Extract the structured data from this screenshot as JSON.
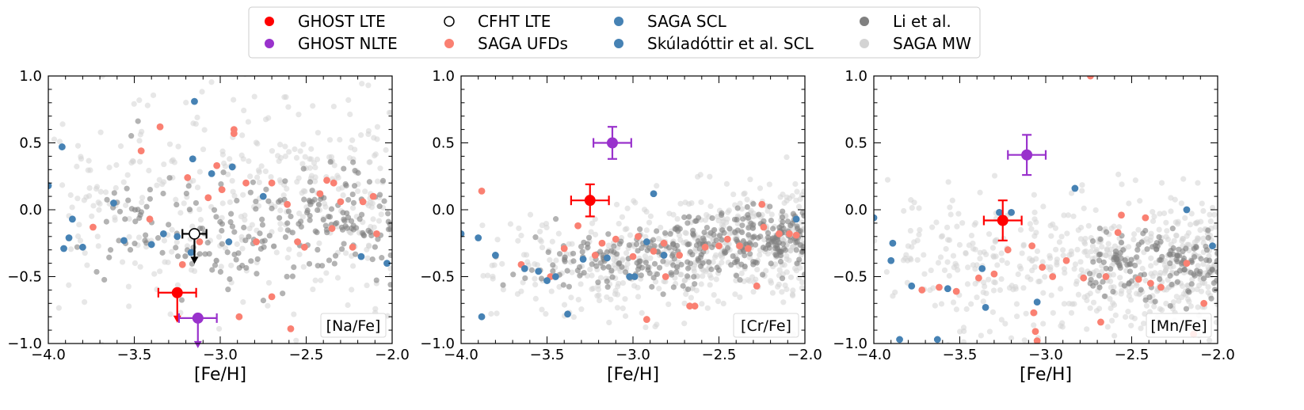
{
  "legend": {
    "entries": [
      {
        "label": "GHOST LTE",
        "marker": "filled",
        "color": "#ff0000"
      },
      {
        "label": "GHOST NLTE",
        "marker": "filled",
        "color": "#9932cc"
      },
      {
        "label": "CFHT LTE",
        "marker": "open",
        "color": "#000000"
      },
      {
        "label": "SAGA UFDs",
        "marker": "filled",
        "color": "#fa8072"
      },
      {
        "label": "SAGA SCL",
        "marker": "filled",
        "color": "#4682b4"
      },
      {
        "label": "Skúladóttir et al. SCL",
        "marker": "filled",
        "color": "#4682b4"
      },
      {
        "label": "Li et al.",
        "marker": "filled",
        "color": "#808080"
      },
      {
        "label": "SAGA MW",
        "marker": "filled",
        "color": "#d3d3d3"
      }
    ]
  },
  "colors": {
    "ghost_lte": "#ff0000",
    "ghost_nlte": "#9932cc",
    "cfht": "#000000",
    "saga_ufd": "#fa8072",
    "saga_scl": "#4682b4",
    "li": "#808080",
    "saga_mw": "#d3d3d3"
  },
  "chart_data": [
    {
      "type": "scatter",
      "title": "[Na/Fe]",
      "xlabel": "[Fe/H]",
      "ylabel": "",
      "xlim": [
        -4.0,
        -2.0
      ],
      "ylim": [
        -1.0,
        1.0
      ],
      "xticks": [
        -4.0,
        -3.5,
        -3.0,
        -2.5,
        -2.0
      ],
      "xtick_labels": [
        "−4.0",
        "−3.5",
        "−3.0",
        "−2.5",
        "−2.0"
      ],
      "yticks": [
        -1.0,
        -0.5,
        0.0,
        0.5,
        1.0
      ],
      "ytick_labels": [
        "−1.0",
        "−0.5",
        "0.0",
        "0.5",
        "1.0"
      ],
      "ghost_lte": {
        "x": -3.25,
        "y": -0.62,
        "xerr": 0.11,
        "upper_limit": true
      },
      "ghost_nlte": {
        "x": -3.13,
        "y": -0.81,
        "xerr": 0.11,
        "upper_limit": true
      },
      "cfht_lte": {
        "x": -3.15,
        "y": -0.18,
        "xerr": 0.07,
        "upper_limit": true
      },
      "saga_scl": [
        [
          -4.0,
          0.18
        ],
        [
          -3.92,
          0.47
        ],
        [
          -3.91,
          -0.29
        ],
        [
          -3.88,
          -0.21
        ],
        [
          -3.86,
          -0.07
        ],
        [
          -3.8,
          -0.28
        ],
        [
          -3.62,
          0.05
        ],
        [
          -3.56,
          -0.23
        ],
        [
          -3.4,
          -0.26
        ],
        [
          -3.33,
          -0.18
        ],
        [
          -3.25,
          -0.2
        ],
        [
          -3.15,
          0.81
        ],
        [
          -3.17,
          -0.32
        ],
        [
          -3.16,
          0.38
        ],
        [
          -3.05,
          0.27
        ],
        [
          -2.93,
          0.32
        ],
        [
          -2.95,
          -0.24
        ],
        [
          -2.75,
          0.1
        ],
        [
          -2.18,
          -0.35
        ],
        [
          -2.03,
          -0.4
        ]
      ],
      "saga_ufd": [
        [
          -3.74,
          -0.13
        ],
        [
          -3.46,
          0.44
        ],
        [
          -3.41,
          -0.07
        ],
        [
          -3.35,
          0.62
        ],
        [
          -3.19,
          0.24
        ],
        [
          -3.12,
          -0.24
        ],
        [
          -3.07,
          0.09
        ],
        [
          -3.02,
          0.33
        ],
        [
          -2.99,
          0.15
        ],
        [
          -2.92,
          0.6
        ],
        [
          -2.92,
          0.57
        ],
        [
          -2.85,
          0.2
        ],
        [
          -2.79,
          -0.24
        ],
        [
          -2.7,
          0.2
        ],
        [
          -2.61,
          0.04
        ],
        [
          -2.55,
          -0.24
        ],
        [
          -2.51,
          -0.28
        ],
        [
          -2.42,
          0.12
        ],
        [
          -2.38,
          0.22
        ],
        [
          -2.35,
          -0.14
        ],
        [
          -2.3,
          0.06
        ],
        [
          -2.23,
          -0.28
        ],
        [
          -2.17,
          0.06
        ],
        [
          -2.11,
          0.1
        ],
        [
          -2.09,
          -0.18
        ],
        [
          -2.7,
          -0.65
        ],
        [
          -2.59,
          -0.89
        ],
        [
          -2.89,
          -0.8
        ],
        [
          -3.22,
          -0.41
        ],
        [
          -2.34,
          0.2
        ]
      ],
      "series_seeds": {
        "li": 11,
        "mw": 23
      }
    },
    {
      "type": "scatter",
      "title": "[Cr/Fe]",
      "xlabel": "[Fe/H]",
      "ylabel": "",
      "xlim": [
        -4.0,
        -2.0
      ],
      "ylim": [
        -1.0,
        1.0
      ],
      "xticks": [
        -4.0,
        -3.5,
        -3.0,
        -2.5,
        -2.0
      ],
      "xtick_labels": [
        "−4.0",
        "−3.5",
        "−3.0",
        "−2.5",
        "−2.0"
      ],
      "yticks": [
        -1.0,
        -0.5,
        0.0,
        0.5,
        1.0
      ],
      "ytick_labels": [
        "−1.0",
        "−0.5",
        "0.0",
        "0.5",
        "1.0"
      ],
      "ghost_lte": {
        "x": -3.25,
        "y": 0.07,
        "xerr": 0.11,
        "yerr": 0.12
      },
      "ghost_nlte": {
        "x": -3.12,
        "y": 0.5,
        "xerr": 0.11,
        "yerr": 0.12
      },
      "saga_scl": [
        [
          -4.0,
          -0.18
        ],
        [
          -3.9,
          -0.21
        ],
        [
          -3.88,
          -0.8
        ],
        [
          -3.8,
          -0.34
        ],
        [
          -3.63,
          -0.44
        ],
        [
          -3.55,
          -0.46
        ],
        [
          -3.5,
          -0.53
        ],
        [
          -3.45,
          -0.5
        ],
        [
          -3.38,
          -0.78
        ],
        [
          -3.29,
          -0.37
        ],
        [
          -3.15,
          -0.36
        ],
        [
          -3.02,
          -0.5
        ],
        [
          -2.99,
          -0.5
        ],
        [
          -2.88,
          0.12
        ],
        [
          -2.82,
          -0.34
        ],
        [
          -2.92,
          -0.24
        ],
        [
          -2.05,
          -0.07
        ]
      ],
      "saga_ufd": [
        [
          -3.88,
          0.14
        ],
        [
          -3.65,
          -0.41
        ],
        [
          -3.48,
          -0.5
        ],
        [
          -3.4,
          -0.29
        ],
        [
          -3.32,
          -0.12
        ],
        [
          -3.22,
          -0.34
        ],
        [
          -3.18,
          -0.25
        ],
        [
          -3.1,
          -0.22
        ],
        [
          -3.0,
          -0.35
        ],
        [
          -2.97,
          -0.2
        ],
        [
          -2.92,
          -0.82
        ],
        [
          -2.88,
          -0.31
        ],
        [
          -2.82,
          -0.25
        ],
        [
          -2.73,
          -0.34
        ],
        [
          -2.67,
          -0.72
        ],
        [
          -2.64,
          -0.72
        ],
        [
          -2.58,
          -0.28
        ],
        [
          -2.5,
          -0.27
        ],
        [
          -2.45,
          -0.22
        ],
        [
          -2.38,
          -0.27
        ],
        [
          -2.33,
          -0.29
        ],
        [
          -2.28,
          -0.57
        ],
        [
          -2.24,
          -0.13
        ],
        [
          -2.15,
          -0.18
        ],
        [
          -2.09,
          -0.18
        ],
        [
          -2.05,
          -0.19
        ],
        [
          -2.81,
          -0.5
        ],
        [
          -2.25,
          0.04
        ]
      ],
      "series_seeds": {
        "li": 37,
        "mw": 41
      }
    },
    {
      "type": "scatter",
      "title": "[Mn/Fe]",
      "xlabel": "[Fe/H]",
      "ylabel": "",
      "xlim": [
        -4.0,
        -2.0
      ],
      "ylim": [
        -1.0,
        1.0
      ],
      "xticks": [
        -4.0,
        -3.5,
        -3.0,
        -2.5,
        -2.0
      ],
      "xtick_labels": [
        "−4.0",
        "−3.5",
        "−3.0",
        "−2.5",
        "−2.0"
      ],
      "yticks": [
        -1.0,
        -0.5,
        0.0,
        0.5,
        1.0
      ],
      "ytick_labels": [
        "−1.0",
        "−0.5",
        "0.0",
        "0.5",
        "1.0"
      ],
      "ghost_lte": {
        "x": -3.25,
        "y": -0.08,
        "xerr": 0.11,
        "yerr": 0.15
      },
      "ghost_nlte": {
        "x": -3.11,
        "y": 0.41,
        "xerr": 0.11,
        "yerr": 0.15
      },
      "saga_scl": [
        [
          -4.0,
          -0.06
        ],
        [
          -3.9,
          -0.38
        ],
        [
          -3.89,
          -0.25
        ],
        [
          -3.85,
          -0.97
        ],
        [
          -3.78,
          -0.57
        ],
        [
          -3.63,
          -0.97
        ],
        [
          -3.57,
          -0.59
        ],
        [
          -3.37,
          -0.44
        ],
        [
          -3.35,
          -0.73
        ],
        [
          -3.27,
          -0.02
        ],
        [
          -3.2,
          -0.02
        ],
        [
          -3.05,
          -0.69
        ],
        [
          -2.83,
          0.16
        ],
        [
          -2.18,
          0.0
        ],
        [
          -2.03,
          -0.27
        ]
      ],
      "saga_ufd": [
        [
          -3.72,
          -0.6
        ],
        [
          -3.62,
          -0.58
        ],
        [
          -3.52,
          -0.61
        ],
        [
          -3.39,
          -0.51
        ],
        [
          -3.3,
          -0.48
        ],
        [
          -3.22,
          -0.3
        ],
        [
          -3.08,
          -0.27
        ],
        [
          -3.02,
          -0.43
        ],
        [
          -2.96,
          -0.5
        ],
        [
          -2.88,
          -0.38
        ],
        [
          -2.78,
          -0.51
        ],
        [
          -2.74,
          1.0
        ],
        [
          -2.68,
          -0.84
        ],
        [
          -2.65,
          -0.5
        ],
        [
          -2.56,
          -0.04
        ],
        [
          -2.46,
          -0.52
        ],
        [
          -2.42,
          -0.06
        ],
        [
          -2.39,
          -0.55
        ],
        [
          -2.33,
          -0.58
        ],
        [
          -2.18,
          -0.4
        ],
        [
          -2.08,
          -0.7
        ],
        [
          -3.07,
          -0.77
        ],
        [
          -3.06,
          -0.91
        ],
        [
          -3.05,
          -0.98
        ],
        [
          -2.58,
          -0.17
        ],
        [
          -2.14,
          -0.93
        ]
      ],
      "series_seeds": {
        "li": 53,
        "mw": 67
      }
    }
  ]
}
